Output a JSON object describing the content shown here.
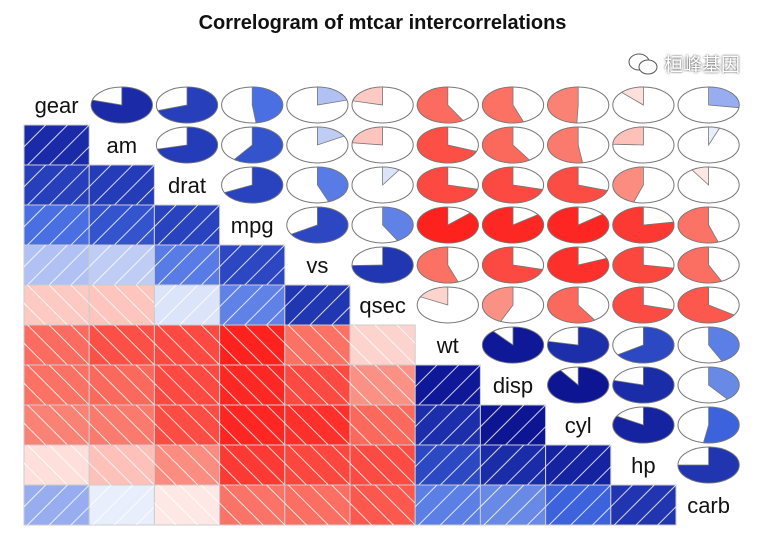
{
  "chart_data": {
    "type": "heatmap",
    "title": "Correlogram of mtcar intercorrelations",
    "variables": [
      "gear",
      "am",
      "drat",
      "mpg",
      "vs",
      "qsec",
      "wt",
      "disp",
      "cyl",
      "hp",
      "carb"
    ],
    "lower_panel": "shade",
    "upper_panel": "pie",
    "diagonal_panel": "text",
    "color_scale": {
      "-1": "#ff0000",
      "-0.5": "#fa8072",
      "0": "#ffffff",
      "0.5": "#4169e1",
      "1": "#000080"
    },
    "correlations": [
      [
        1.0,
        0.794,
        0.7,
        0.48,
        0.206,
        -0.213,
        -0.583,
        -0.556,
        -0.493,
        -0.126,
        0.274
      ],
      [
        0.794,
        1.0,
        0.713,
        0.6,
        0.168,
        -0.23,
        -0.692,
        -0.591,
        -0.523,
        -0.243,
        0.058
      ],
      [
        0.7,
        0.713,
        1.0,
        0.681,
        0.44,
        0.091,
        -0.712,
        -0.71,
        -0.7,
        -0.449,
        -0.091
      ],
      [
        0.48,
        0.6,
        0.681,
        1.0,
        0.664,
        0.419,
        -0.868,
        -0.848,
        -0.852,
        -0.776,
        -0.551
      ],
      [
        0.206,
        0.168,
        0.44,
        0.664,
        1.0,
        0.745,
        -0.555,
        -0.71,
        -0.811,
        -0.723,
        -0.57
      ],
      [
        -0.213,
        -0.23,
        0.091,
        0.419,
        0.745,
        1.0,
        -0.175,
        -0.434,
        -0.591,
        -0.708,
        -0.656
      ],
      [
        -0.583,
        -0.692,
        -0.712,
        -0.868,
        -0.555,
        -0.175,
        1.0,
        0.888,
        0.782,
        0.659,
        0.428
      ],
      [
        -0.556,
        -0.591,
        -0.71,
        -0.848,
        -0.71,
        -0.434,
        0.888,
        1.0,
        0.902,
        0.791,
        0.395
      ],
      [
        -0.493,
        -0.523,
        -0.7,
        -0.852,
        -0.811,
        -0.591,
        0.782,
        0.902,
        1.0,
        0.832,
        0.527
      ],
      [
        -0.126,
        -0.243,
        -0.449,
        -0.776,
        -0.723,
        -0.708,
        0.659,
        0.791,
        0.832,
        1.0,
        0.75
      ],
      [
        0.274,
        0.058,
        -0.091,
        -0.551,
        -0.57,
        -0.656,
        0.428,
        0.395,
        0.527,
        0.75,
        1.0
      ]
    ]
  },
  "watermark": {
    "text": "桓峰基因",
    "icon": "wechat-icon"
  }
}
